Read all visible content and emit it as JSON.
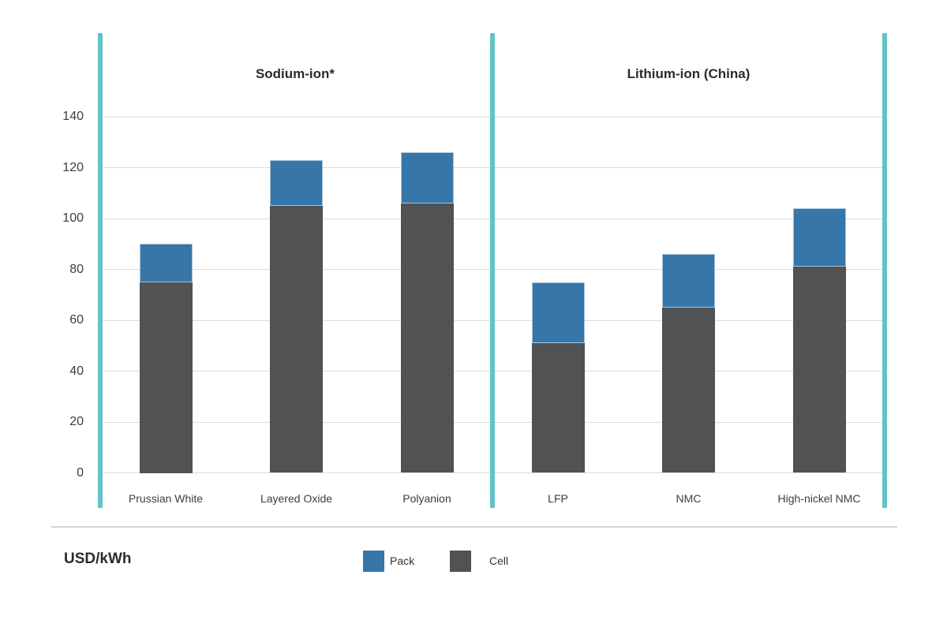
{
  "chart_data": {
    "type": "bar",
    "stacked": true,
    "unit_label": "USD/kWh",
    "grid": "horizontal",
    "legend_position": "bottom",
    "sections": [
      {
        "label": "Sodium-ion*",
        "categories": [
          "Prussian White",
          "Layered Oxide",
          "Polyanion"
        ]
      },
      {
        "label": "Lithium-ion (China)",
        "categories": [
          "LFP",
          "NMC",
          "High-nickel NMC"
        ]
      }
    ],
    "categories": [
      "Prussian White",
      "Layered Oxide",
      "Polyanion",
      "LFP",
      "NMC",
      "High-nickel NMC"
    ],
    "series": [
      {
        "name": "Cell",
        "color": "#505254",
        "values": [
          75,
          105,
          106,
          51,
          65,
          81
        ]
      },
      {
        "name": "Pack",
        "color": "#3776a9",
        "values": [
          15,
          18,
          20,
          24,
          21,
          23
        ]
      }
    ],
    "totals": [
      90,
      123,
      126,
      75,
      86,
      104
    ],
    "yticks": [
      0,
      20,
      40,
      60,
      80,
      100,
      120,
      140
    ],
    "ylim": [
      0,
      140
    ],
    "legend": [
      {
        "label": "Pack",
        "color": "#3776a9"
      },
      {
        "label": "Cell",
        "color": "#505254"
      }
    ]
  },
  "colors": {
    "accent_teal": "#63c3c6",
    "pack_blue": "#3776a9",
    "cell_gray": "#505254"
  }
}
